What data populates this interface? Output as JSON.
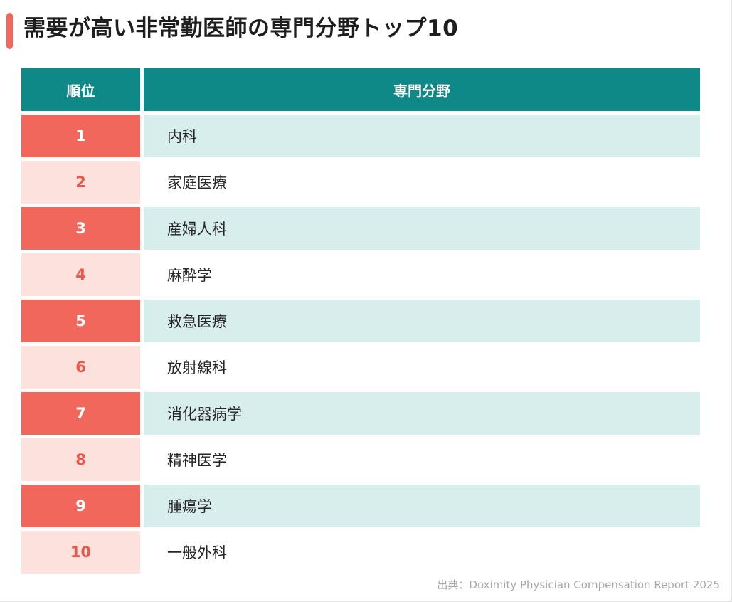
{
  "title": "需要が高い非常勤医師の専門分野トップ10",
  "source": "出典：Doximity Physician Compensation Report 2025",
  "colors": {
    "header": "#0e8987",
    "accent": "#f1675b",
    "accent_light": "#fde1dd",
    "row_alt": "#d7eeec"
  },
  "chart_data": {
    "type": "table",
    "title": "需要が高い非常勤医師の専門分野トップ10",
    "columns": [
      "順位",
      "専門分野"
    ],
    "rows": [
      [
        "1",
        "内科"
      ],
      [
        "2",
        "家庭医療"
      ],
      [
        "3",
        "産婦人科"
      ],
      [
        "4",
        "麻酔学"
      ],
      [
        "5",
        "救急医療"
      ],
      [
        "6",
        "放射線科"
      ],
      [
        "7",
        "消化器病学"
      ],
      [
        "8",
        "精神医学"
      ],
      [
        "9",
        "腫瘍学"
      ],
      [
        "10",
        "一般外科"
      ]
    ]
  }
}
